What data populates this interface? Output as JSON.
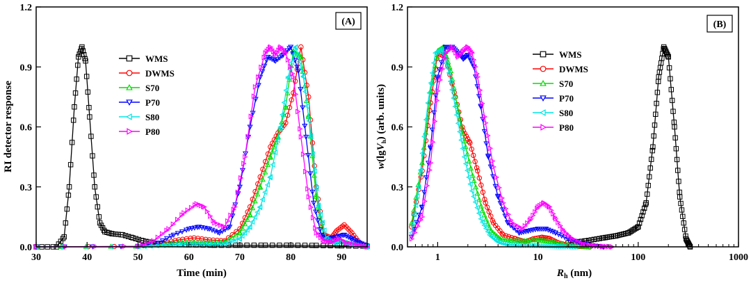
{
  "chart_data": [
    {
      "panel": "(A)",
      "type": "line",
      "xlabel": "Time (min)",
      "ylabel": "RI detector response",
      "xlim": [
        30,
        95
      ],
      "ylim": [
        0,
        1.2
      ],
      "xscale": "linear",
      "xticks": [
        30,
        40,
        50,
        60,
        70,
        80,
        90
      ],
      "yticks": [
        0.0,
        0.3,
        0.6,
        0.9,
        1.2
      ],
      "xtick_labels": [
        "30",
        "40",
        "50",
        "60",
        "70",
        "80",
        "90"
      ],
      "ytick_labels": [
        "0.0",
        "0.3",
        "0.6",
        "0.9",
        "1.2"
      ],
      "legend_position": "upper-center",
      "grid": false,
      "series": [
        {
          "name": "WMS",
          "color": "#000000",
          "marker": "square",
          "x": [
            30,
            34,
            35.5,
            36.5,
            37.5,
            38.3,
            39,
            39.7,
            40.5,
            41.5,
            42.5,
            43.5,
            45,
            47,
            49,
            51,
            53,
            56,
            60,
            65,
            70,
            75,
            80,
            85,
            90,
            95
          ],
          "y": [
            0.0,
            0.0,
            0.05,
            0.3,
            0.7,
            0.95,
            1.0,
            0.93,
            0.65,
            0.3,
            0.12,
            0.075,
            0.065,
            0.06,
            0.045,
            0.03,
            0.02,
            0.012,
            0.01,
            0.008,
            0.008,
            0.008,
            0.008,
            0.007,
            0.005,
            0.003
          ]
        },
        {
          "name": "DWMS",
          "color": "#ff0000",
          "marker": "circle",
          "x": [
            30,
            50,
            55,
            58,
            61,
            64,
            67,
            70,
            72,
            74,
            76,
            77.5,
            79,
            80.5,
            82,
            83.5,
            85,
            86.5,
            88,
            89,
            90.5,
            92,
            93.5,
            95
          ],
          "y": [
            0.0,
            0.002,
            0.02,
            0.035,
            0.045,
            0.035,
            0.03,
            0.09,
            0.2,
            0.35,
            0.5,
            0.57,
            0.62,
            0.77,
            1.0,
            0.75,
            0.3,
            0.06,
            0.045,
            0.08,
            0.11,
            0.07,
            0.02,
            0.0
          ]
        },
        {
          "name": "S70",
          "color": "#00dd00",
          "marker": "triangle-up",
          "x": [
            30,
            50,
            55,
            58,
            61,
            64,
            67,
            70,
            72,
            74,
            76,
            77.5,
            79,
            80.5,
            82,
            83.5,
            85,
            86.5,
            88,
            89.5,
            91,
            93,
            95
          ],
          "y": [
            0.0,
            0.002,
            0.012,
            0.02,
            0.025,
            0.02,
            0.025,
            0.07,
            0.16,
            0.3,
            0.45,
            0.55,
            0.7,
            0.98,
            0.95,
            0.65,
            0.25,
            0.05,
            0.025,
            0.03,
            0.02,
            0.01,
            0.0
          ]
        },
        {
          "name": "P70",
          "color": "#0000ff",
          "marker": "triangle-down",
          "x": [
            30,
            50,
            54,
            57,
            60,
            62,
            64,
            66,
            68,
            70,
            72,
            74,
            75.5,
            77,
            78.5,
            80,
            81.5,
            83,
            84.5,
            86,
            87.5,
            89,
            90.5,
            92,
            93.5,
            95
          ],
          "y": [
            0.0,
            0.002,
            0.02,
            0.06,
            0.09,
            0.1,
            0.09,
            0.07,
            0.1,
            0.3,
            0.6,
            0.85,
            0.95,
            0.93,
            0.96,
            1.0,
            0.88,
            0.55,
            0.22,
            0.06,
            0.04,
            0.05,
            0.06,
            0.04,
            0.02,
            0.005
          ]
        },
        {
          "name": "S80",
          "color": "#00e5e5",
          "marker": "triangle-left",
          "x": [
            30,
            50,
            55,
            58,
            61,
            64,
            67,
            70,
            72,
            74,
            76,
            78,
            79.5,
            81,
            82.5,
            84,
            85.5,
            87,
            88.5,
            90,
            91.5,
            93,
            95
          ],
          "y": [
            0.0,
            0.001,
            0.008,
            0.012,
            0.015,
            0.013,
            0.015,
            0.04,
            0.1,
            0.2,
            0.35,
            0.6,
            0.85,
            1.0,
            0.85,
            0.55,
            0.2,
            0.04,
            0.02,
            0.025,
            0.015,
            0.008,
            0.0
          ]
        },
        {
          "name": "P80",
          "color": "#ff00ff",
          "marker": "triangle-right",
          "x": [
            30,
            50,
            53,
            56,
            59,
            61.5,
            63,
            65,
            67,
            69,
            71,
            73,
            75,
            76,
            77,
            78,
            79,
            80.5,
            82,
            83.5,
            85,
            86.5,
            88,
            89.5,
            91,
            93,
            95
          ],
          "y": [
            0.0,
            0.003,
            0.03,
            0.09,
            0.17,
            0.215,
            0.2,
            0.12,
            0.1,
            0.2,
            0.45,
            0.8,
            0.97,
            1.0,
            0.96,
            1.0,
            0.97,
            0.85,
            0.55,
            0.25,
            0.07,
            0.03,
            0.025,
            0.04,
            0.02,
            0.01,
            0.0
          ]
        }
      ]
    },
    {
      "panel": "(B)",
      "type": "line",
      "xlabel_italic": "R",
      "xlabel_sub": "h",
      "xlabel_rest": " (nm)",
      "ylabel_italic": "w",
      "ylabel_rest": "(lg",
      "ylabel_italic2": "V",
      "ylabel_sub": "h",
      "ylabel_tail": ") (arb. units)",
      "xlim": [
        0.5,
        1000
      ],
      "ylim": [
        0,
        1.2
      ],
      "xscale": "log",
      "xticks": [
        1,
        10,
        100,
        1000
      ],
      "yticks": [
        0.0,
        0.3,
        0.6,
        0.9,
        1.2
      ],
      "xtick_labels": [
        "1",
        "10",
        "100",
        "1000"
      ],
      "ytick_labels": [
        "0.0",
        "0.3",
        "0.6",
        "0.9",
        "1.2"
      ],
      "legend_position": "upper-right",
      "grid": false,
      "series": [
        {
          "name": "WMS",
          "color": "#000000",
          "marker": "square",
          "x": [
            20,
            30,
            45,
            60,
            80,
            100,
            120,
            140,
            160,
            180,
            200,
            230,
            260,
            300,
            330
          ],
          "y": [
            0.02,
            0.03,
            0.045,
            0.055,
            0.07,
            0.1,
            0.22,
            0.5,
            0.85,
            1.0,
            0.95,
            0.6,
            0.25,
            0.04,
            0.0
          ]
        },
        {
          "name": "DWMS",
          "color": "#ff0000",
          "marker": "circle",
          "x": [
            0.55,
            0.7,
            0.85,
            1.0,
            1.2,
            1.5,
            1.8,
            2.1,
            2.5,
            3.0,
            3.6,
            4.5,
            6,
            7.5,
            9,
            11,
            13,
            16,
            20,
            26,
            33
          ],
          "y": [
            0.1,
            0.38,
            0.72,
            0.97,
            0.95,
            0.75,
            0.58,
            0.52,
            0.38,
            0.22,
            0.12,
            0.06,
            0.04,
            0.025,
            0.04,
            0.048,
            0.042,
            0.02,
            0.008,
            0.002,
            0.0
          ]
        },
        {
          "name": "S70",
          "color": "#00dd00",
          "marker": "triangle-up",
          "x": [
            0.55,
            0.7,
            0.85,
            1.0,
            1.15,
            1.35,
            1.6,
            1.9,
            2.3,
            2.8,
            3.4,
            4.2,
            5.5,
            7,
            9,
            11,
            14,
            18,
            24,
            32
          ],
          "y": [
            0.12,
            0.42,
            0.78,
            0.98,
            1.0,
            0.88,
            0.68,
            0.5,
            0.33,
            0.18,
            0.08,
            0.04,
            0.03,
            0.028,
            0.035,
            0.032,
            0.025,
            0.012,
            0.004,
            0.0
          ]
        },
        {
          "name": "P70",
          "color": "#0000ff",
          "marker": "triangle-down",
          "x": [
            0.55,
            0.7,
            0.85,
            1.0,
            1.2,
            1.4,
            1.6,
            1.8,
            2.0,
            2.3,
            2.7,
            3.2,
            4,
            5,
            6.5,
            8,
            10,
            12,
            15,
            20,
            26,
            35,
            45
          ],
          "y": [
            0.05,
            0.2,
            0.5,
            0.85,
            1.0,
            1.0,
            0.97,
            0.94,
            0.96,
            0.9,
            0.7,
            0.45,
            0.25,
            0.12,
            0.07,
            0.08,
            0.09,
            0.09,
            0.07,
            0.04,
            0.02,
            0.006,
            0.0
          ]
        },
        {
          "name": "S80",
          "color": "#00e5e5",
          "marker": "triangle-left",
          "x": [
            0.55,
            0.65,
            0.8,
            0.95,
            1.1,
            1.3,
            1.55,
            1.85,
            2.2,
            2.7,
            3.3,
            4.0,
            5,
            6.5,
            8.5,
            11,
            14,
            18,
            24
          ],
          "y": [
            0.07,
            0.3,
            0.72,
            0.97,
            0.99,
            0.87,
            0.66,
            0.45,
            0.28,
            0.14,
            0.06,
            0.025,
            0.012,
            0.008,
            0.008,
            0.006,
            0.004,
            0.002,
            0.0
          ]
        },
        {
          "name": "P80",
          "color": "#ff00ff",
          "marker": "triangle-right",
          "x": [
            0.55,
            0.7,
            0.85,
            1.0,
            1.2,
            1.4,
            1.6,
            1.8,
            2.0,
            2.2,
            2.5,
            3.0,
            3.6,
            4.5,
            5.5,
            7,
            8.5,
            10,
            11.5,
            13,
            15,
            18,
            22,
            28,
            36,
            45,
            55
          ],
          "y": [
            0.04,
            0.15,
            0.42,
            0.78,
            0.97,
            1.0,
            0.95,
            0.98,
            1.0,
            0.97,
            0.85,
            0.62,
            0.4,
            0.22,
            0.12,
            0.09,
            0.14,
            0.2,
            0.22,
            0.2,
            0.14,
            0.08,
            0.04,
            0.015,
            0.006,
            0.002,
            0.0
          ]
        }
      ]
    }
  ]
}
